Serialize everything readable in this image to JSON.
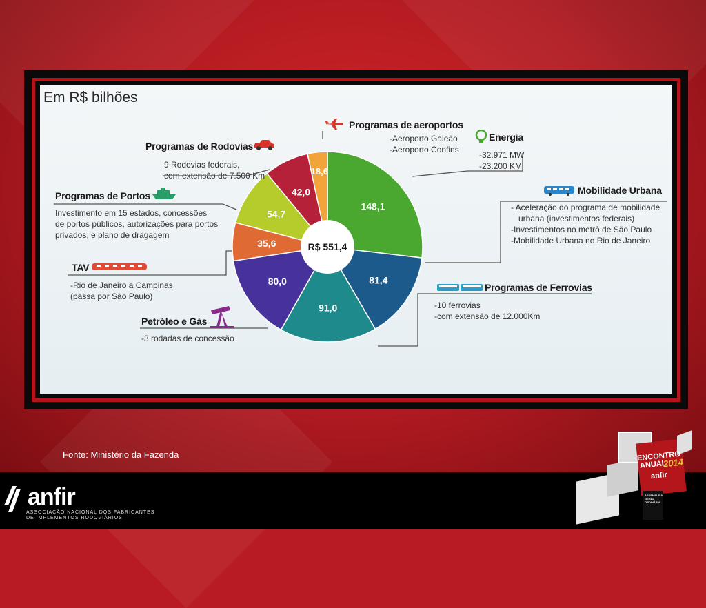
{
  "slide": {
    "source": "Fonte: Ministério da Fazenda",
    "logo": {
      "name": "anfir",
      "line1": "ASSOCIAÇÃO NACIONAL DOS FABRICANTES",
      "line2": "DE IMPLEMENTOS RODOVIÁRIOS"
    },
    "event_badge": {
      "line1": "ENCONTRO",
      "line2": "ANUAL",
      "year": "2014",
      "brand": "anfir",
      "sub1": "ASSEMBLEIA",
      "sub2": "GERAL",
      "sub3": "ORDINÁRIA"
    }
  },
  "chart_data": {
    "type": "pie",
    "title": "Em R$ bilhões",
    "center_label": "R$ 551,4",
    "slices": [
      {
        "key": "energia",
        "label": "Energia",
        "value": 148.1,
        "display": "148,1",
        "color": "#4aa72f"
      },
      {
        "key": "mobilidade",
        "label": "Mobilidade Urbana",
        "value": 81.4,
        "display": "81,4",
        "color": "#1c5a8c"
      },
      {
        "key": "ferrovias",
        "label": "Programas de Ferrovias",
        "value": 91.0,
        "display": "91,0",
        "color": "#1f8a8c"
      },
      {
        "key": "petroleo",
        "label": "Petróleo e Gás",
        "value": 80.0,
        "display": "80,0",
        "color": "#46329a"
      },
      {
        "key": "tav",
        "label": "TAV",
        "value": 35.6,
        "display": "35,6",
        "color": "#e06a33"
      },
      {
        "key": "portos",
        "label": "Programas de Portos",
        "value": 54.7,
        "display": "54,7",
        "color": "#b5cc2a"
      },
      {
        "key": "rodovias",
        "label": "Programas de Rodovias",
        "value": 42.0,
        "display": "42,0",
        "color": "#b6213a"
      },
      {
        "key": "aeroportos",
        "label": "Programas de aeroportos",
        "value": 18.6,
        "display": "18,6",
        "color": "#f2a33a"
      }
    ],
    "annotations": {
      "aeroportos": {
        "title": "Programas de aeroportos",
        "lines": [
          "-Aeroporto Galeão",
          "-Aeroporto Confins"
        ]
      },
      "energia": {
        "title": "Energia",
        "lines": [
          "-32.971 MW",
          "-23.200 KM"
        ]
      },
      "mobilidade": {
        "title": "Mobilidade Urbana",
        "lines": [
          "- Aceleração do programa de mobilidade",
          "  urbana (investimentos federais)",
          "-Investimentos no metrô de São Paulo",
          "-Mobilidade Urbana no Rio de Janeiro"
        ]
      },
      "ferrovias": {
        "title": "Programas de Ferrovias",
        "lines": [
          "-10 ferrovias",
          "-com extensão de 12.000Km"
        ]
      },
      "rodovias": {
        "title": "Programas de Rodovias",
        "lines": [
          "9 Rodovias federais,",
          "com extensão de 7.500 Km"
        ]
      },
      "portos": {
        "title": "Programas de Portos",
        "lines": [
          "Investimento em 15 estados, concessões",
          "de portos públicos, autorizações para portos",
          "privados, e plano de dragagem"
        ]
      },
      "tav": {
        "title": "TAV",
        "lines": [
          "-Rio de Janeiro a Campinas",
          "(passa por São Paulo)"
        ]
      },
      "petroleo": {
        "title": "Petróleo e Gás",
        "lines": [
          "-3 rodadas de concessão"
        ]
      }
    }
  }
}
